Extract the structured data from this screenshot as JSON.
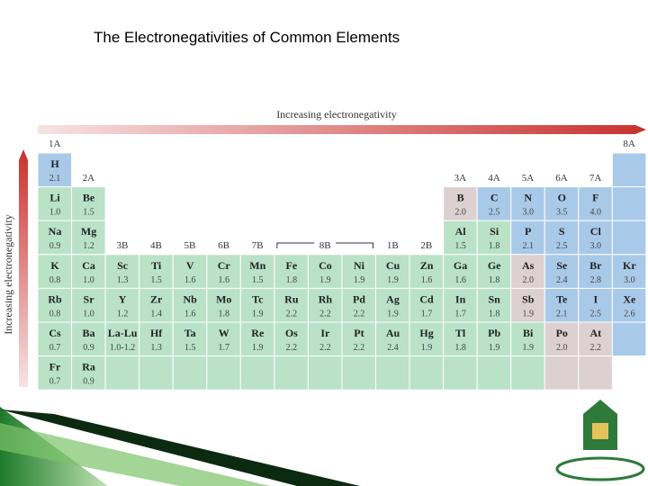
{
  "title": "The Electronegativities of Common Elements",
  "horizontal_arrow_label": "Increasing electronegativity",
  "vertical_arrow_label": "Increasing electronegativity",
  "group_labels": [
    "1A",
    "2A",
    "3B",
    "4B",
    "5B",
    "6B",
    "7B",
    "8B",
    "1B",
    "2B",
    "3A",
    "4A",
    "5A",
    "6A",
    "7A",
    "8A"
  ],
  "table": {
    "rows": [
      [
        {
          "symbol": "H",
          "value": "2.1",
          "color": "#a9c9e9"
        },
        null,
        null,
        null,
        null,
        null,
        null,
        null,
        null,
        null,
        null,
        null,
        null,
        null,
        null,
        null,
        null,
        {
          "color": "#a9c9e9"
        }
      ],
      [
        {
          "symbol": "Li",
          "value": "1.0",
          "color": "#b9e2c7"
        },
        {
          "symbol": "Be",
          "value": "1.5",
          "color": "#b9e2c7"
        },
        null,
        null,
        null,
        null,
        null,
        null,
        null,
        null,
        null,
        null,
        {
          "symbol": "B",
          "value": "2.0",
          "color": "#dcd0d1"
        },
        {
          "symbol": "C",
          "value": "2.5",
          "color": "#a9c9e9"
        },
        {
          "symbol": "N",
          "value": "3.0",
          "color": "#a9c9e9"
        },
        {
          "symbol": "O",
          "value": "3.5",
          "color": "#a9c9e9"
        },
        {
          "symbol": "F",
          "value": "4.0",
          "color": "#a9c9e9"
        },
        {
          "color": "#a9c9e9"
        }
      ],
      [
        {
          "symbol": "Na",
          "value": "0.9",
          "color": "#b9e2c7"
        },
        {
          "symbol": "Mg",
          "value": "1.2",
          "color": "#b9e2c7"
        },
        null,
        null,
        null,
        null,
        null,
        null,
        null,
        null,
        null,
        null,
        {
          "symbol": "Al",
          "value": "1.5",
          "color": "#b9e2c7"
        },
        {
          "symbol": "Si",
          "value": "1.8",
          "color": "#b9e2c7"
        },
        {
          "symbol": "P",
          "value": "2.1",
          "color": "#a9c9e9"
        },
        {
          "symbol": "S",
          "value": "2.5",
          "color": "#a9c9e9"
        },
        {
          "symbol": "Cl",
          "value": "3.0",
          "color": "#a9c9e9"
        },
        {
          "color": "#a9c9e9"
        }
      ],
      [
        {
          "symbol": "K",
          "value": "0.8",
          "color": "#b9e2c7"
        },
        {
          "symbol": "Ca",
          "value": "1.0",
          "color": "#b9e2c7"
        },
        {
          "symbol": "Sc",
          "value": "1.3",
          "color": "#b9e2c7"
        },
        {
          "symbol": "Ti",
          "value": "1.5",
          "color": "#b9e2c7"
        },
        {
          "symbol": "V",
          "value": "1.6",
          "color": "#b9e2c7"
        },
        {
          "symbol": "Cr",
          "value": "1.6",
          "color": "#b9e2c7"
        },
        {
          "symbol": "Mn",
          "value": "1.5",
          "color": "#b9e2c7"
        },
        {
          "symbol": "Fe",
          "value": "1.8",
          "color": "#b9e2c7"
        },
        {
          "symbol": "Co",
          "value": "1.9",
          "color": "#b9e2c7"
        },
        {
          "symbol": "Ni",
          "value": "1.9",
          "color": "#b9e2c7"
        },
        {
          "symbol": "Cu",
          "value": "1.9",
          "color": "#b9e2c7"
        },
        {
          "symbol": "Zn",
          "value": "1.6",
          "color": "#b9e2c7"
        },
        {
          "symbol": "Ga",
          "value": "1.6",
          "color": "#b9e2c7"
        },
        {
          "symbol": "Ge",
          "value": "1.8",
          "color": "#b9e2c7"
        },
        {
          "symbol": "As",
          "value": "2.0",
          "color": "#dcd0d1"
        },
        {
          "symbol": "Se",
          "value": "2.4",
          "color": "#a9c9e9"
        },
        {
          "symbol": "Br",
          "value": "2.8",
          "color": "#a9c9e9"
        },
        {
          "symbol": "Kr",
          "value": "3.0",
          "color": "#a9c9e9"
        }
      ],
      [
        {
          "symbol": "Rb",
          "value": "0.8",
          "color": "#b9e2c7"
        },
        {
          "symbol": "Sr",
          "value": "1.0",
          "color": "#b9e2c7"
        },
        {
          "symbol": "Y",
          "value": "1.2",
          "color": "#b9e2c7"
        },
        {
          "symbol": "Zr",
          "value": "1.4",
          "color": "#b9e2c7"
        },
        {
          "symbol": "Nb",
          "value": "1.6",
          "color": "#b9e2c7"
        },
        {
          "symbol": "Mo",
          "value": "1.8",
          "color": "#b9e2c7"
        },
        {
          "symbol": "Tc",
          "value": "1.9",
          "color": "#b9e2c7"
        },
        {
          "symbol": "Ru",
          "value": "2.2",
          "color": "#b9e2c7"
        },
        {
          "symbol": "Rh",
          "value": "2.2",
          "color": "#b9e2c7"
        },
        {
          "symbol": "Pd",
          "value": "2.2",
          "color": "#b9e2c7"
        },
        {
          "symbol": "Ag",
          "value": "1.9",
          "color": "#b9e2c7"
        },
        {
          "symbol": "Cd",
          "value": "1.7",
          "color": "#b9e2c7"
        },
        {
          "symbol": "In",
          "value": "1.7",
          "color": "#b9e2c7"
        },
        {
          "symbol": "Sn",
          "value": "1.8",
          "color": "#b9e2c7"
        },
        {
          "symbol": "Sb",
          "value": "1.9",
          "color": "#dcd0d1"
        },
        {
          "symbol": "Te",
          "value": "2.1",
          "color": "#a9c9e9"
        },
        {
          "symbol": "I",
          "value": "2.5",
          "color": "#a9c9e9"
        },
        {
          "symbol": "Xe",
          "value": "2.6",
          "color": "#a9c9e9"
        }
      ],
      [
        {
          "symbol": "Cs",
          "value": "0.7",
          "color": "#b9e2c7"
        },
        {
          "symbol": "Ba",
          "value": "0.9",
          "color": "#b9e2c7"
        },
        {
          "symbol": "La-Lu",
          "value": "1.0-1.2",
          "color": "#b9e2c7"
        },
        {
          "symbol": "Hf",
          "value": "1.3",
          "color": "#b9e2c7"
        },
        {
          "symbol": "Ta",
          "value": "1.5",
          "color": "#b9e2c7"
        },
        {
          "symbol": "W",
          "value": "1.7",
          "color": "#b9e2c7"
        },
        {
          "symbol": "Re",
          "value": "1.9",
          "color": "#b9e2c7"
        },
        {
          "symbol": "Os",
          "value": "2.2",
          "color": "#b9e2c7"
        },
        {
          "symbol": "Ir",
          "value": "2.2",
          "color": "#b9e2c7"
        },
        {
          "symbol": "Pt",
          "value": "2.2",
          "color": "#b9e2c7"
        },
        {
          "symbol": "Au",
          "value": "2.4",
          "color": "#b9e2c7"
        },
        {
          "symbol": "Hg",
          "value": "1.9",
          "color": "#b9e2c7"
        },
        {
          "symbol": "Tl",
          "value": "1.8",
          "color": "#b9e2c7"
        },
        {
          "symbol": "Pb",
          "value": "1.9",
          "color": "#b9e2c7"
        },
        {
          "symbol": "Bi",
          "value": "1.9",
          "color": "#b9e2c7"
        },
        {
          "symbol": "Po",
          "value": "2.0",
          "color": "#dcd0d1"
        },
        {
          "symbol": "At",
          "value": "2.2",
          "color": "#dcd0d1"
        },
        {
          "color": "#a9c9e9"
        }
      ],
      [
        {
          "symbol": "Fr",
          "value": "0.7",
          "color": "#b9e2c7"
        },
        {
          "symbol": "Ra",
          "value": "0.9",
          "color": "#b9e2c7"
        },
        {
          "color": "#b9e2c7"
        },
        {
          "color": "#b9e2c7"
        },
        {
          "color": "#b9e2c7"
        },
        {
          "color": "#b9e2c7"
        },
        {
          "color": "#b9e2c7"
        },
        {
          "color": "#b9e2c7"
        },
        {
          "color": "#b9e2c7"
        },
        {
          "color": "#b9e2c7"
        },
        {
          "color": "#b9e2c7"
        },
        {
          "color": "#b9e2c7"
        },
        {
          "color": "#b9e2c7"
        },
        {
          "color": "#b9e2c7"
        },
        {
          "color": "#b9e2c7"
        },
        {
          "color": "#dcd0d1"
        },
        {
          "color": "#dcd0d1"
        },
        null
      ]
    ]
  }
}
